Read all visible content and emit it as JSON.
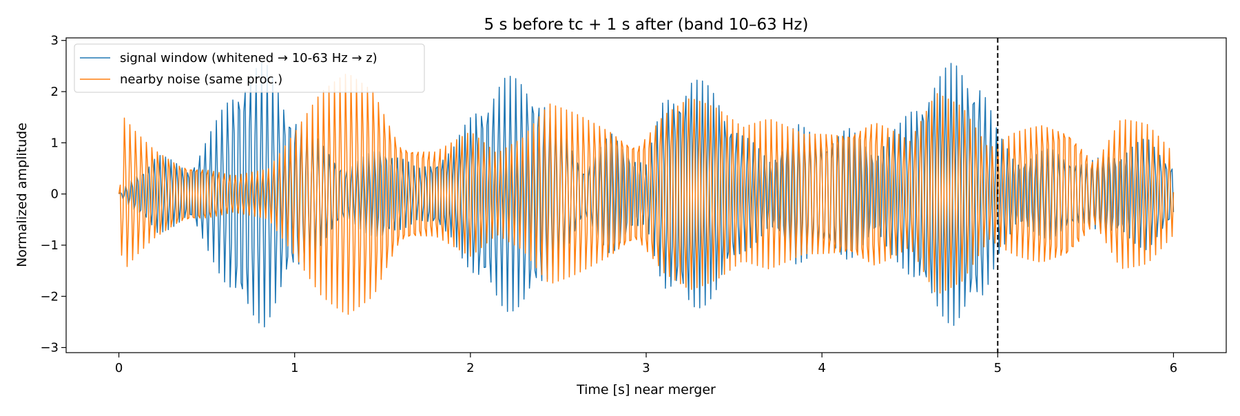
{
  "chart_data": {
    "type": "line",
    "title": "5 s before tc + 1 s after (band 10–63 Hz)",
    "xlabel": "Time [s] near merger",
    "ylabel": "Normalized amplitude",
    "xlim": [
      -0.3,
      6.3
    ],
    "ylim": [
      -3.1,
      3.05
    ],
    "xticks": [
      0,
      1,
      2,
      3,
      4,
      5,
      6
    ],
    "yticks": [
      -3,
      -2,
      -1,
      0,
      1,
      2,
      3
    ],
    "xtick_labels": [
      "0",
      "1",
      "2",
      "3",
      "4",
      "5",
      "6"
    ],
    "ytick_labels": [
      "−3",
      "−2",
      "−1",
      "0",
      "1",
      "2",
      "3"
    ],
    "grid": false,
    "legend_position": "top-left",
    "vline": {
      "x": 5,
      "style": "dashed",
      "color": "#000000"
    },
    "sample_rate": 128,
    "series": [
      {
        "name": "signal window (whitened → 10-63 Hz → z)",
        "color": "#1f77b4",
        "carrier_hz": 31.1,
        "phase": 0.0,
        "envelope": {
          "t": [
            0,
            0.1,
            0.22,
            0.4,
            0.55,
            0.7,
            0.83,
            0.95,
            1.1,
            1.3,
            1.5,
            1.7,
            1.9,
            2.05,
            2.2,
            2.35,
            2.5,
            2.65,
            2.8,
            3.0,
            3.1,
            3.25,
            3.4,
            3.55,
            3.7,
            3.85,
            4.0,
            4.15,
            4.3,
            4.45,
            4.6,
            4.75,
            4.9,
            5.0,
            5.1,
            5.3,
            5.5,
            5.7,
            5.85,
            6.0
          ],
          "a": [
            0.0,
            0.4,
            0.8,
            0.5,
            1.4,
            2.5,
            2.6,
            1.9,
            1.2,
            0.5,
            1.0,
            0.5,
            0.9,
            1.9,
            2.3,
            2.3,
            1.4,
            0.5,
            1.2,
            0.6,
            1.9,
            2.4,
            2.0,
            1.2,
            0.7,
            1.4,
            1.1,
            1.3,
            0.9,
            1.4,
            2.2,
            2.6,
            2.4,
            1.2,
            0.7,
            0.9,
            0.6,
            0.9,
            1.1,
            0.6
          ]
        }
      },
      {
        "name": "nearby noise (same proc.)",
        "color": "#ff7f0e",
        "carrier_hz": 31.8,
        "phase": 1.3,
        "envelope": {
          "t": [
            0,
            0.02,
            0.1,
            0.2,
            0.35,
            0.5,
            0.65,
            0.85,
            1.0,
            1.15,
            1.3,
            1.45,
            1.6,
            1.8,
            2.0,
            2.15,
            2.3,
            2.45,
            2.6,
            2.8,
            2.95,
            3.1,
            3.25,
            3.4,
            3.55,
            3.7,
            3.9,
            4.1,
            4.3,
            4.5,
            4.65,
            4.8,
            4.95,
            5.1,
            5.25,
            5.4,
            5.55,
            5.7,
            5.85,
            6.0
          ],
          "a": [
            0.0,
            1.6,
            1.3,
            1.0,
            0.7,
            0.6,
            0.4,
            0.5,
            1.2,
            2.0,
            2.5,
            2.3,
            1.2,
            1.0,
            1.3,
            0.8,
            1.1,
            1.8,
            1.7,
            1.5,
            1.2,
            1.8,
            2.0,
            1.7,
            1.3,
            1.5,
            1.3,
            1.5,
            1.7,
            1.1,
            2.0,
            1.7,
            0.9,
            1.3,
            1.6,
            1.6,
            0.7,
            1.6,
            1.4,
            0.8
          ]
        }
      }
    ]
  }
}
